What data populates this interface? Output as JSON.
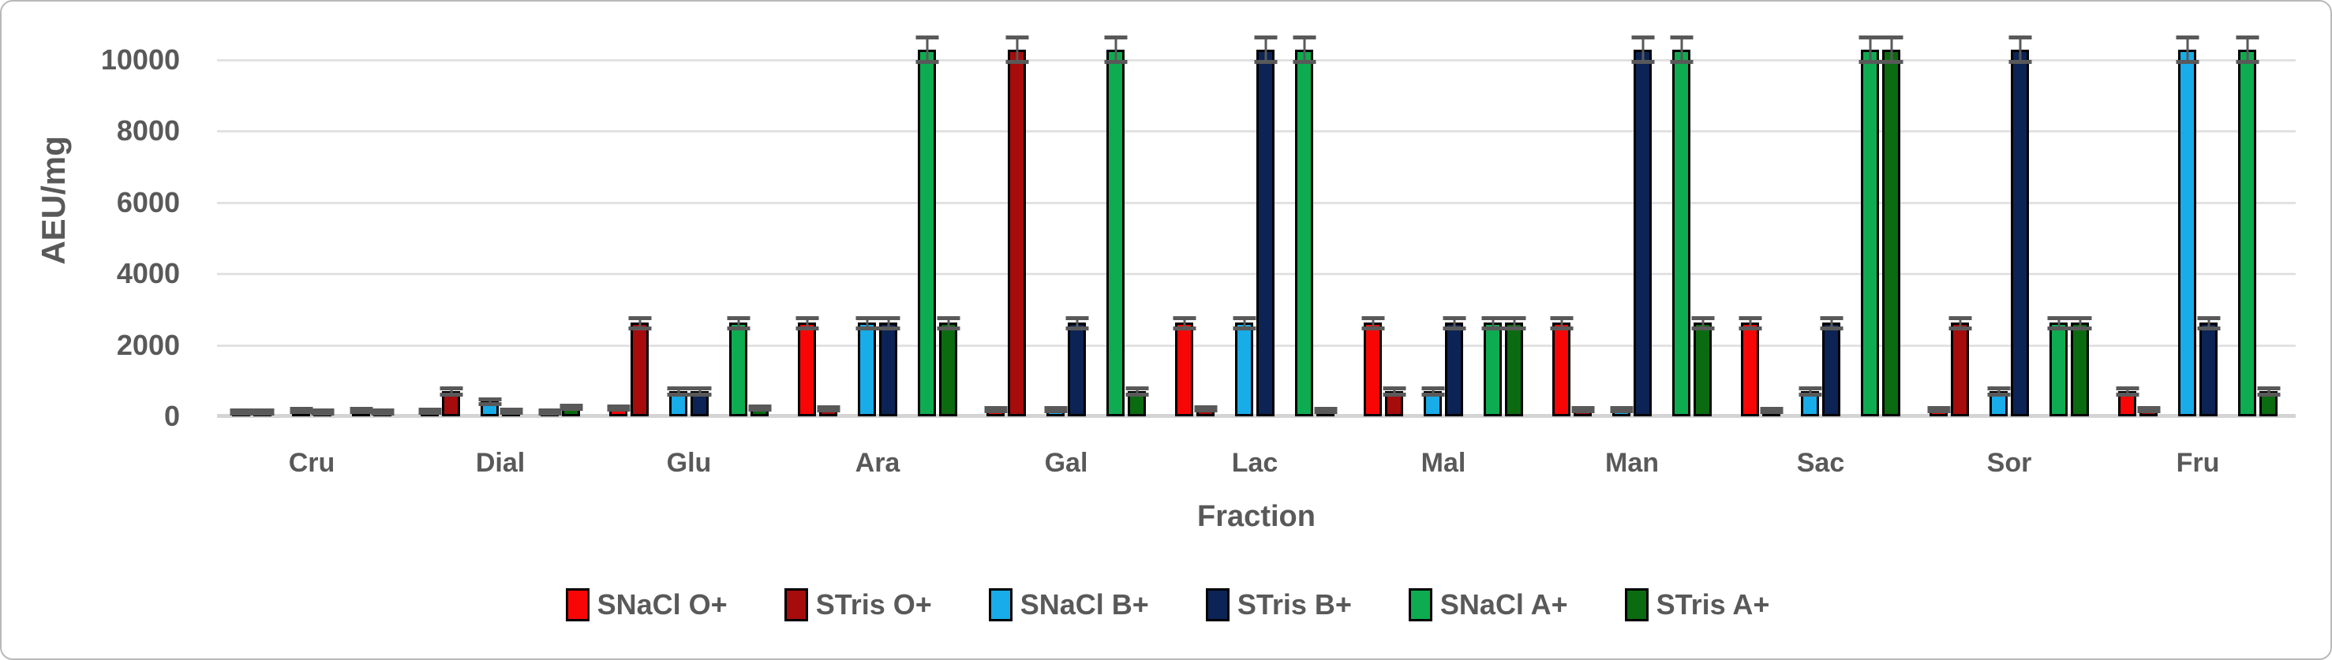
{
  "chart_data": {
    "type": "bar",
    "title": "",
    "xlabel": "Fraction",
    "ylabel": "AEU/mg",
    "ylim": [
      0,
      10000
    ],
    "yticks": [
      0,
      2000,
      4000,
      6000,
      8000,
      10000
    ],
    "grid": "horizontal",
    "legend_position": "bottom",
    "error_bars": true,
    "error_color": "#595959",
    "categories": [
      "Cru",
      "Dial",
      "Glu",
      "Ara",
      "Gal",
      "Lac",
      "Mal",
      "Man",
      "Sac",
      "Sor",
      "Fru"
    ],
    "series": [
      {
        "name": "SNaCl O+",
        "color": "#f80606",
        "values": [
          40,
          90,
          180,
          2560,
          140,
          2560,
          2560,
          2560,
          2560,
          130,
          650
        ],
        "errors": [
          30,
          40,
          50,
          140,
          40,
          140,
          140,
          140,
          140,
          40,
          90
        ]
      },
      {
        "name": "STris O+",
        "color": "#a60c0c",
        "values": [
          40,
          650,
          2560,
          150,
          10220,
          150,
          650,
          130,
          120,
          2560,
          130
        ],
        "errors": [
          30,
          90,
          140,
          40,
          350,
          40,
          90,
          40,
          40,
          140,
          40
        ]
      },
      {
        "name": "SNaCl B+",
        "color": "#18ace8",
        "values": [
          110,
          350,
          650,
          2560,
          140,
          2560,
          650,
          130,
          650,
          650,
          10220
        ],
        "errors": [
          40,
          60,
          90,
          140,
          40,
          140,
          90,
          40,
          90,
          90,
          350
        ]
      },
      {
        "name": "STris B+",
        "color": "#0b2455",
        "values": [
          70,
          90,
          650,
          2560,
          2560,
          10220,
          2560,
          10220,
          2560,
          10220,
          2560
        ],
        "errors": [
          30,
          40,
          90,
          140,
          140,
          350,
          140,
          350,
          140,
          350,
          140
        ]
      },
      {
        "name": "SNaCl A+",
        "color": "#0eac50",
        "values": [
          110,
          60,
          2560,
          10220,
          10220,
          10220,
          2560,
          10220,
          10220,
          2560,
          10220
        ],
        "errors": [
          40,
          30,
          140,
          350,
          350,
          350,
          140,
          350,
          350,
          140,
          350
        ]
      },
      {
        "name": "STris A+",
        "color": "#0a6b10",
        "values": [
          70,
          200,
          180,
          2560,
          650,
          120,
          2560,
          2560,
          10220,
          2560,
          650
        ],
        "errors": [
          30,
          40,
          50,
          140,
          90,
          40,
          140,
          140,
          350,
          140,
          90
        ]
      }
    ]
  }
}
